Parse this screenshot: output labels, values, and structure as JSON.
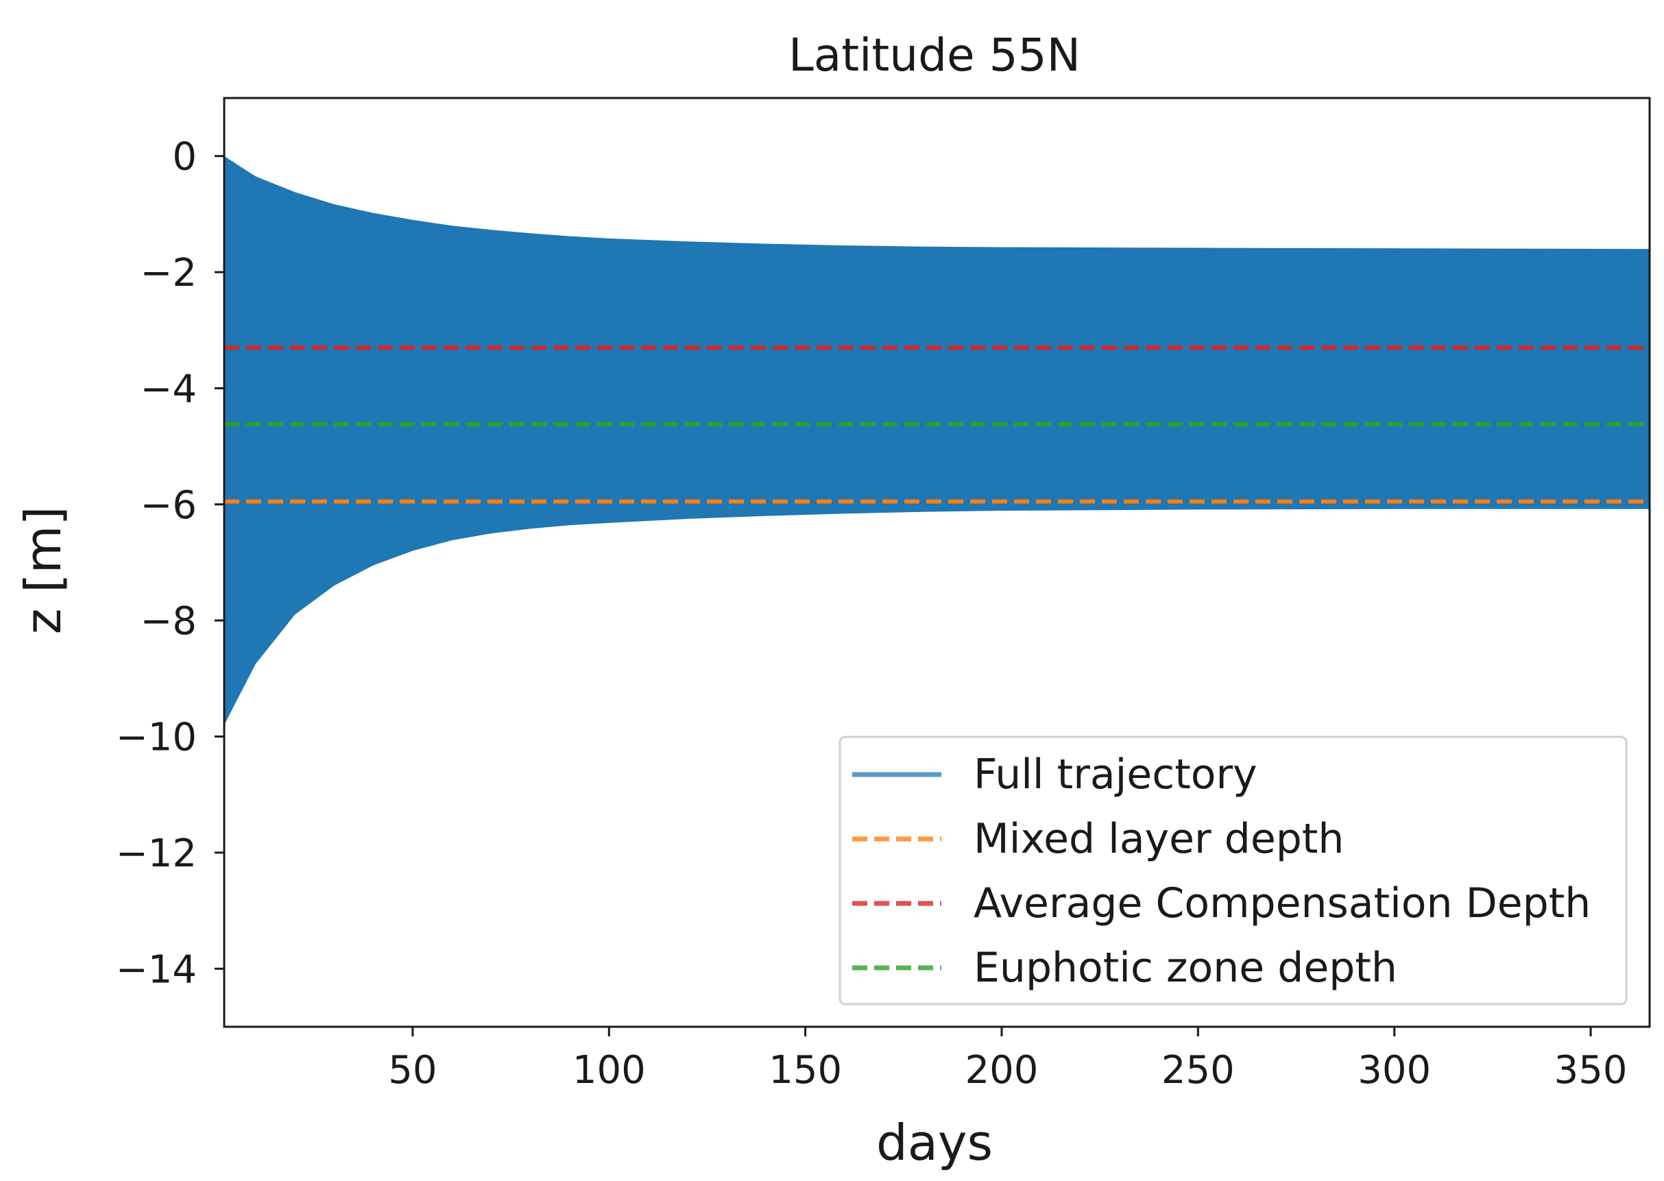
{
  "chart_data": {
    "type": "area",
    "title": "Latitude 55N",
    "xlabel": "days",
    "ylabel": "z [m]",
    "xlim": [
      2,
      365
    ],
    "ylim": [
      -15,
      1
    ],
    "xticks": [
      50,
      100,
      150,
      200,
      250,
      300,
      350
    ],
    "yticks": [
      0,
      -2,
      -4,
      -6,
      -8,
      -10,
      -12,
      -14
    ],
    "xtick_labels": [
      "50",
      "100",
      "150",
      "200",
      "250",
      "300",
      "350"
    ],
    "ytick_labels": [
      "0",
      "−2",
      "−4",
      "−6",
      "−8",
      "−10",
      "−12",
      "−14"
    ],
    "grid": false,
    "legend_position": "lower-right",
    "series": [
      {
        "name": "Full trajectory",
        "kind": "envelope",
        "color": "#1f77b4",
        "x": [
          2,
          10,
          20,
          30,
          40,
          50,
          60,
          70,
          80,
          90,
          100,
          120,
          140,
          160,
          180,
          200,
          250,
          300,
          365
        ],
        "upper": [
          0.0,
          -0.35,
          -0.62,
          -0.83,
          -0.98,
          -1.1,
          -1.2,
          -1.27,
          -1.33,
          -1.38,
          -1.42,
          -1.47,
          -1.51,
          -1.54,
          -1.56,
          -1.57,
          -1.58,
          -1.59,
          -1.6
        ],
        "lower": [
          -9.8,
          -8.75,
          -7.9,
          -7.4,
          -7.05,
          -6.8,
          -6.62,
          -6.5,
          -6.42,
          -6.36,
          -6.32,
          -6.25,
          -6.2,
          -6.16,
          -6.13,
          -6.11,
          -6.09,
          -6.08,
          -6.08
        ]
      },
      {
        "name": "Mixed layer depth",
        "kind": "hline",
        "color": "#ff7f0e",
        "y": -5.95
      },
      {
        "name": "Average Compensation Depth",
        "kind": "hline",
        "color": "#d62728",
        "y": -3.3
      },
      {
        "name": "Euphotic zone depth",
        "kind": "hline",
        "color": "#2ca02c",
        "y": -4.62
      }
    ]
  }
}
